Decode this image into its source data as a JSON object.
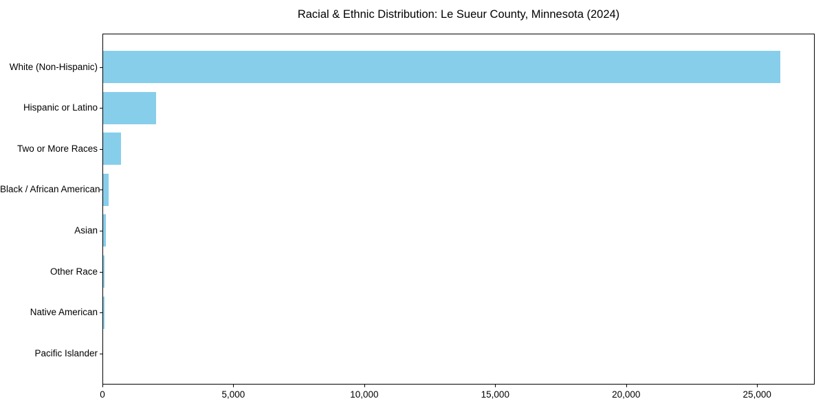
{
  "chart_data": {
    "type": "bar",
    "orientation": "horizontal",
    "title": "Racial & Ethnic Distribution: Le Sueur County, Minnesota (2024)",
    "categories": [
      "White (Non-Hispanic)",
      "Hispanic or Latino",
      "Two or More Races",
      "Black / African American",
      "Asian",
      "Other Race",
      "Native American",
      "Pacific Islander"
    ],
    "values": [
      25900,
      2040,
      700,
      245,
      140,
      90,
      85,
      10
    ],
    "bar_color": "#87CEEB",
    "xlabel": "",
    "ylabel": "",
    "xlim": [
      0,
      27200
    ],
    "xticks": [
      0,
      5000,
      10000,
      15000,
      20000,
      25000
    ],
    "xtick_labels": [
      "0",
      "5,000",
      "10,000",
      "15,000",
      "20,000",
      "25,000"
    ],
    "grid": false,
    "legend": "none",
    "axis_color": "#000000",
    "background_color": "#ffffff"
  }
}
